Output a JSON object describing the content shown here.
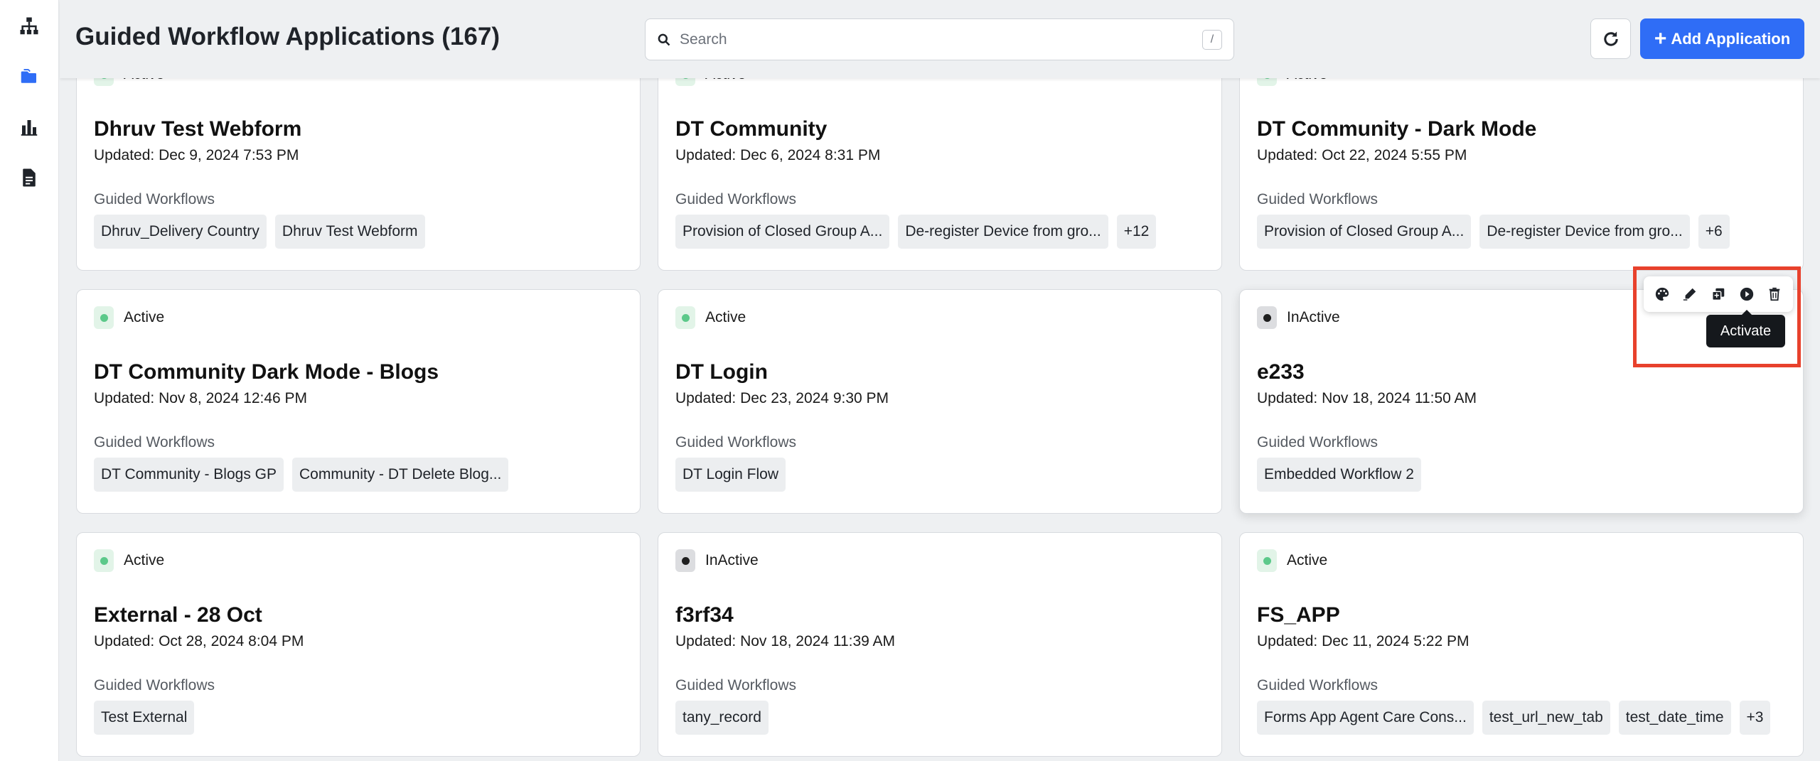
{
  "header": {
    "title": "Guided Workflow Applications (167)",
    "search_placeholder": "Search",
    "search_shortcut": "/",
    "add_button_label": "Add Application"
  },
  "sidebar": {
    "items": [
      {
        "icon": "sitemap-icon"
      },
      {
        "icon": "folder-icon",
        "active": true
      },
      {
        "icon": "bar-chart-icon"
      },
      {
        "icon": "document-icon"
      }
    ]
  },
  "colors": {
    "primary": "#2f6df6",
    "active_dot": "#5cc98a",
    "inactive_dot": "#1f1f1f",
    "highlight": "#e8412c"
  },
  "workflows_label": "Guided Workflows",
  "cards": [
    {
      "status": "Active",
      "title": "Dhruv Test Webform",
      "updated": "Updated: Dec 9, 2024 7:53 PM",
      "tags": [
        "Dhruv_Delivery Country",
        "Dhruv Test Webform"
      ]
    },
    {
      "status": "Active",
      "title": "DT Community",
      "updated": "Updated: Dec 6, 2024 8:31 PM",
      "tags": [
        "Provision of Closed Group A...",
        "De-register Device from gro...",
        "+12"
      ]
    },
    {
      "status": "Active",
      "title": "DT Community - Dark Mode",
      "updated": "Updated: Oct 22, 2024 5:55 PM",
      "tags": [
        "Provision of Closed Group A...",
        "De-register Device from gro...",
        "+6"
      ]
    },
    {
      "status": "Active",
      "title": "DT Community Dark Mode - Blogs",
      "updated": "Updated: Nov 8, 2024 12:46 PM",
      "tags": [
        "DT Community - Blogs GP",
        "Community - DT Delete Blog..."
      ]
    },
    {
      "status": "Active",
      "title": "DT Login",
      "updated": "Updated: Dec 23, 2024 9:30 PM",
      "tags": [
        "DT Login Flow"
      ]
    },
    {
      "status": "InActive",
      "title": "e233",
      "updated": "Updated: Nov 18, 2024 11:50 AM",
      "tags": [
        "Embedded Workflow 2"
      ]
    },
    {
      "status": "Active",
      "title": "External - 28 Oct",
      "updated": "Updated: Oct 28, 2024 8:04 PM",
      "tags": [
        "Test External"
      ]
    },
    {
      "status": "InActive",
      "title": "f3rf34",
      "updated": "Updated: Nov 18, 2024 11:39 AM",
      "tags": [
        "tany_record"
      ]
    },
    {
      "status": "Active",
      "title": "FS_APP",
      "updated": "Updated: Dec 11, 2024 5:22 PM",
      "tags": [
        "Forms App Agent Care Cons...",
        "test_url_new_tab",
        "test_date_time",
        "+3"
      ]
    }
  ],
  "action_bar": {
    "actions": [
      {
        "icon": "palette-icon"
      },
      {
        "icon": "edit-icon"
      },
      {
        "icon": "duplicate-icon"
      },
      {
        "icon": "activate-icon"
      },
      {
        "icon": "trash-icon"
      }
    ],
    "tooltip": "Activate"
  }
}
